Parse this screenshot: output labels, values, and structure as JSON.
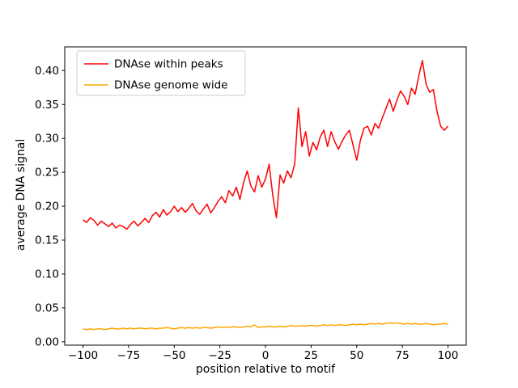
{
  "chart_data": {
    "type": "line",
    "xlabel": "position relative to motif",
    "ylabel": "average DNA signal",
    "xlim": [
      -110,
      110
    ],
    "ylim": [
      -0.005,
      0.435
    ],
    "grid": false,
    "legend_position": "upper-left",
    "xticks": {
      "values": [
        -100,
        -75,
        -50,
        -25,
        0,
        25,
        50,
        75,
        100
      ],
      "labels": [
        "−100",
        "−75",
        "−50",
        "−25",
        "0",
        "25",
        "50",
        "75",
        "100"
      ]
    },
    "yticks": {
      "values": [
        0.0,
        0.05,
        0.1,
        0.15,
        0.2,
        0.25,
        0.3,
        0.35,
        0.4
      ],
      "labels": [
        "0.00",
        "0.05",
        "0.10",
        "0.15",
        "0.20",
        "0.25",
        "0.30",
        "0.35",
        "0.40"
      ]
    },
    "x": [
      -100,
      -98,
      -96,
      -94,
      -92,
      -90,
      -88,
      -86,
      -84,
      -82,
      -80,
      -78,
      -76,
      -74,
      -72,
      -70,
      -68,
      -66,
      -64,
      -62,
      -60,
      -58,
      -56,
      -54,
      -52,
      -50,
      -48,
      -46,
      -44,
      -42,
      -40,
      -38,
      -36,
      -34,
      -32,
      -30,
      -28,
      -26,
      -24,
      -22,
      -20,
      -18,
      -16,
      -14,
      -12,
      -10,
      -8,
      -6,
      -4,
      -2,
      0,
      2,
      4,
      6,
      8,
      10,
      12,
      14,
      16,
      18,
      20,
      22,
      24,
      26,
      28,
      30,
      32,
      34,
      36,
      38,
      40,
      42,
      44,
      46,
      48,
      50,
      52,
      54,
      56,
      58,
      60,
      62,
      64,
      66,
      68,
      70,
      72,
      74,
      76,
      78,
      80,
      82,
      84,
      86,
      88,
      90,
      92,
      94,
      96,
      98,
      100
    ],
    "series": [
      {
        "name": "DNAse within peaks",
        "color": "#ff0000",
        "values": [
          0.18,
          0.176,
          0.183,
          0.179,
          0.172,
          0.178,
          0.174,
          0.17,
          0.175,
          0.168,
          0.172,
          0.17,
          0.166,
          0.173,
          0.178,
          0.171,
          0.176,
          0.182,
          0.176,
          0.186,
          0.191,
          0.184,
          0.195,
          0.187,
          0.192,
          0.2,
          0.192,
          0.198,
          0.191,
          0.197,
          0.204,
          0.193,
          0.188,
          0.196,
          0.203,
          0.19,
          0.198,
          0.207,
          0.214,
          0.205,
          0.223,
          0.215,
          0.228,
          0.21,
          0.235,
          0.252,
          0.23,
          0.221,
          0.245,
          0.228,
          0.24,
          0.262,
          0.216,
          0.183,
          0.246,
          0.234,
          0.252,
          0.242,
          0.262,
          0.345,
          0.288,
          0.31,
          0.274,
          0.294,
          0.283,
          0.302,
          0.312,
          0.288,
          0.31,
          0.295,
          0.284,
          0.296,
          0.305,
          0.312,
          0.29,
          0.268,
          0.297,
          0.315,
          0.318,
          0.305,
          0.322,
          0.315,
          0.33,
          0.344,
          0.358,
          0.34,
          0.356,
          0.37,
          0.362,
          0.35,
          0.374,
          0.365,
          0.392,
          0.415,
          0.38,
          0.368,
          0.372,
          0.34,
          0.318,
          0.312,
          0.318
        ]
      },
      {
        "name": "DNAse genome wide",
        "color": "#ffa500",
        "values": [
          0.019,
          0.018,
          0.019,
          0.018,
          0.019,
          0.019,
          0.018,
          0.019,
          0.02,
          0.019,
          0.019,
          0.02,
          0.019,
          0.02,
          0.019,
          0.02,
          0.02,
          0.019,
          0.02,
          0.02,
          0.019,
          0.02,
          0.02,
          0.021,
          0.02,
          0.019,
          0.02,
          0.021,
          0.02,
          0.021,
          0.02,
          0.021,
          0.02,
          0.021,
          0.021,
          0.02,
          0.021,
          0.022,
          0.021,
          0.022,
          0.021,
          0.022,
          0.022,
          0.021,
          0.022,
          0.023,
          0.022,
          0.025,
          0.021,
          0.022,
          0.022,
          0.023,
          0.022,
          0.022,
          0.023,
          0.022,
          0.023,
          0.024,
          0.023,
          0.023,
          0.024,
          0.023,
          0.024,
          0.024,
          0.023,
          0.024,
          0.025,
          0.024,
          0.025,
          0.024,
          0.025,
          0.025,
          0.024,
          0.025,
          0.026,
          0.025,
          0.026,
          0.025,
          0.026,
          0.027,
          0.026,
          0.027,
          0.026,
          0.027,
          0.028,
          0.027,
          0.028,
          0.027,
          0.026,
          0.027,
          0.026,
          0.027,
          0.026,
          0.026,
          0.027,
          0.026,
          0.025,
          0.026,
          0.026,
          0.027,
          0.026
        ]
      }
    ]
  }
}
